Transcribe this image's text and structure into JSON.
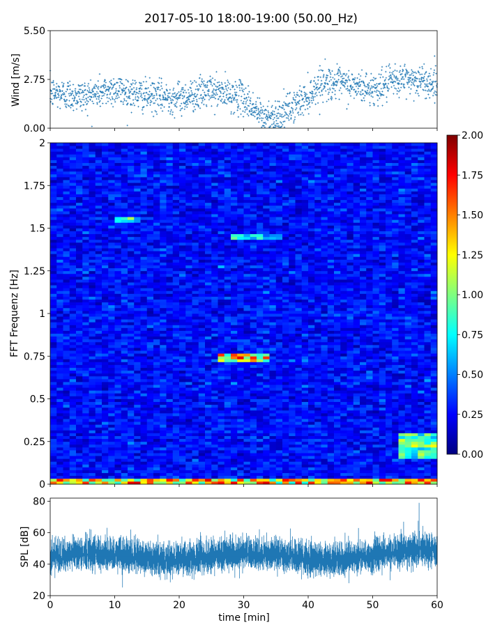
{
  "figure_title": "2017-05-10 18:00-19:00 (50.00_Hz)",
  "chart_data": [
    {
      "type": "scatter",
      "panel": "wind",
      "ylabel": "Wind [m/s]",
      "xlim": [
        0,
        60
      ],
      "ylim": [
        0,
        5.5
      ],
      "yticks": [
        "0.00",
        "2.75",
        "5.50"
      ],
      "grid": false,
      "marker": "+",
      "color": "#1f77b4",
      "profile_x": [
        0,
        5,
        10,
        15,
        20,
        25,
        30,
        33,
        36,
        40,
        42,
        45,
        50,
        55,
        60
      ],
      "profile_y": [
        2.0,
        1.8,
        2.2,
        1.8,
        1.7,
        2.1,
        1.7,
        0.6,
        0.8,
        1.8,
        2.6,
        2.5,
        2.2,
        2.8,
        2.5
      ]
    },
    {
      "type": "heatmap",
      "panel": "spectrogram",
      "ylabel": "FFT Frequenz [Hz]",
      "xlim": [
        0,
        60
      ],
      "ylim": [
        0,
        2
      ],
      "yticks": [
        "0",
        "0.25",
        "0.5",
        "0.75",
        "1",
        "1.25",
        "1.5",
        "1.75",
        "2"
      ],
      "colormap": "jet",
      "colorbar": {
        "range": [
          0,
          2
        ],
        "ticks": [
          "0.00",
          "0.25",
          "0.50",
          "0.75",
          "1.00",
          "1.25",
          "1.50",
          "1.75",
          "2.00"
        ]
      },
      "typical_value": 0.2,
      "features": [
        {
          "x": [
            0,
            60
          ],
          "freq": [
            0,
            0.04
          ],
          "value": 1.3
        },
        {
          "x": [
            26,
            34
          ],
          "freq": [
            0.72,
            0.76
          ],
          "value": 1.3
        },
        {
          "x": [
            28,
            36
          ],
          "freq": [
            1.43,
            1.47
          ],
          "value": 0.7
        },
        {
          "x": [
            10,
            14
          ],
          "freq": [
            1.54,
            1.57
          ],
          "value": 0.8
        },
        {
          "x": [
            54,
            60
          ],
          "freq": [
            0.15,
            0.3
          ],
          "value": 0.9
        }
      ]
    },
    {
      "type": "area",
      "panel": "spl",
      "ylabel": "SPL [dB]",
      "xlabel": "time [min]",
      "xlim": [
        0,
        60
      ],
      "ylim": [
        20,
        82
      ],
      "yticks": [
        "20",
        "40",
        "60",
        "80"
      ],
      "xticks": [
        "0",
        "10",
        "20",
        "30",
        "40",
        "50",
        "60"
      ],
      "color": "#1f77b4",
      "mean_level": 45,
      "band_low": 38,
      "band_high": 52,
      "peaks": [
        {
          "x": 57.2,
          "y": 79
        },
        {
          "x": 54.8,
          "y": 67
        },
        {
          "x": 47.8,
          "y": 63
        },
        {
          "x": 12.5,
          "y": 62
        }
      ]
    }
  ]
}
